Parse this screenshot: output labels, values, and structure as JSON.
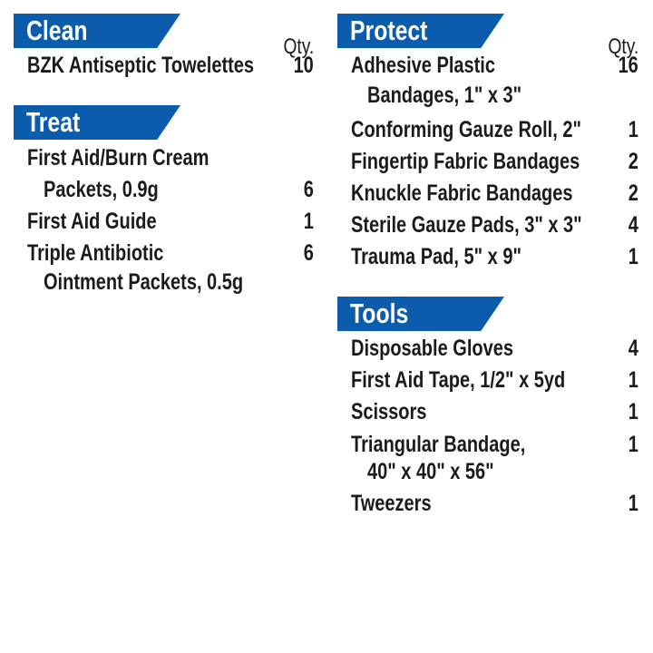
{
  "qty_label": "Qty.",
  "colors": {
    "banner": "#0b5cad",
    "text": "#1c1a1b"
  },
  "sections": [
    {
      "title": "Clean",
      "items": [
        {
          "lines": [
            "BZK Antiseptic Towelettes"
          ],
          "qty": "10"
        }
      ]
    },
    {
      "title": "Treat",
      "items": [
        {
          "lines": [
            "First Aid/Burn Cream",
            "Packets, 0.9g"
          ],
          "qty": "6"
        },
        {
          "lines": [
            "First Aid Guide"
          ],
          "qty": "1"
        },
        {
          "lines": [
            "Triple Antibiotic",
            "Ointment Packets, 0.5g"
          ],
          "qty": "6"
        }
      ]
    },
    {
      "title": "Protect",
      "items": [
        {
          "lines": [
            "Adhesive Plastic",
            "Bandages, 1\" x 3\""
          ],
          "qty": "16"
        },
        {
          "lines": [
            "Conforming Gauze Roll, 2\""
          ],
          "qty": "1"
        },
        {
          "lines": [
            "Fingertip Fabric Bandages"
          ],
          "qty": "2"
        },
        {
          "lines": [
            "Knuckle Fabric Bandages"
          ],
          "qty": "2"
        },
        {
          "lines": [
            "Sterile Gauze Pads, 3\" x 3\""
          ],
          "qty": "4"
        },
        {
          "lines": [
            "Trauma Pad, 5\" x 9\""
          ],
          "qty": "1"
        }
      ]
    },
    {
      "title": "Tools",
      "items": [
        {
          "lines": [
            "Disposable Gloves"
          ],
          "qty": "4"
        },
        {
          "lines": [
            "First Aid Tape, 1/2\" x 5yd"
          ],
          "qty": "1"
        },
        {
          "lines": [
            "Scissors"
          ],
          "qty": "1"
        },
        {
          "lines": [
            "Triangular Bandage,",
            "40\" x 40\" x 56\""
          ],
          "qty": "1"
        },
        {
          "lines": [
            "Tweezers"
          ],
          "qty": "1"
        }
      ]
    }
  ]
}
